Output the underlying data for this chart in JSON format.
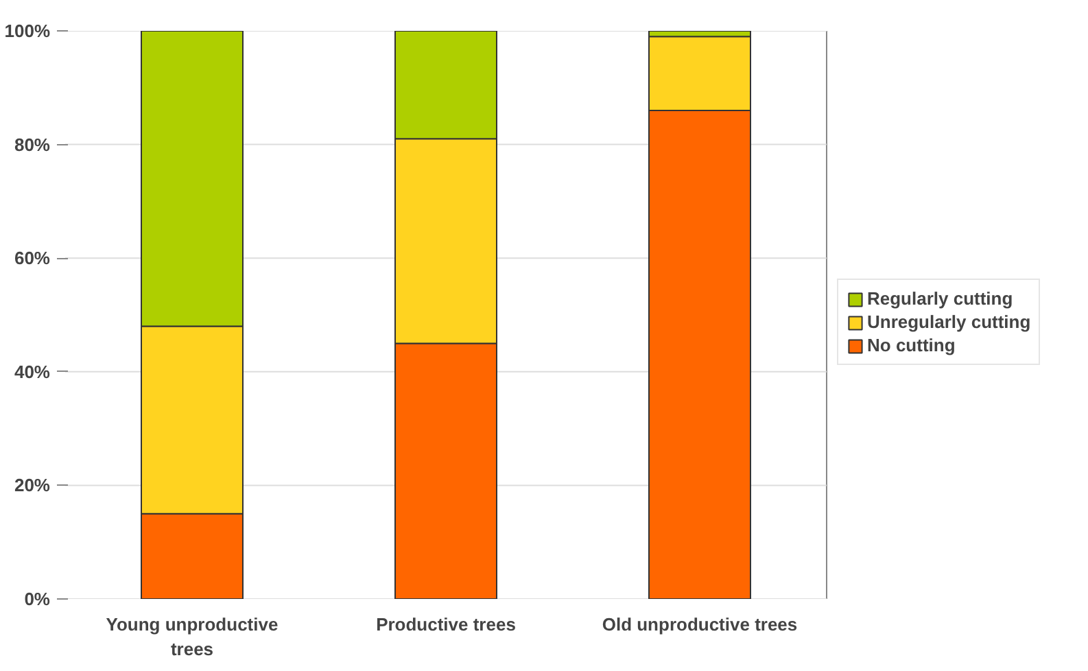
{
  "chart_data": {
    "type": "bar",
    "stacked": true,
    "categories": [
      "Young unproductive trees",
      "Productive trees",
      "Old unproductive trees"
    ],
    "series": [
      {
        "name": "No cutting",
        "color": "#ff6600",
        "values": [
          15,
          45,
          86
        ]
      },
      {
        "name": "Unregularly cutting",
        "color": "#ffd320",
        "values": [
          33,
          36,
          13
        ]
      },
      {
        "name": "Regularly cutting",
        "color": "#aecf00",
        "values": [
          52,
          19,
          1
        ]
      }
    ],
    "ylim": [
      0,
      100
    ],
    "yticks": [
      {
        "value": 0,
        "label": "0%"
      },
      {
        "value": 20,
        "label": "20%"
      },
      {
        "value": 40,
        "label": "40%"
      },
      {
        "value": 60,
        "label": "60%"
      },
      {
        "value": 80,
        "label": "80%"
      },
      {
        "value": 100,
        "label": "100%"
      }
    ],
    "grid": "y",
    "legend": "right"
  }
}
